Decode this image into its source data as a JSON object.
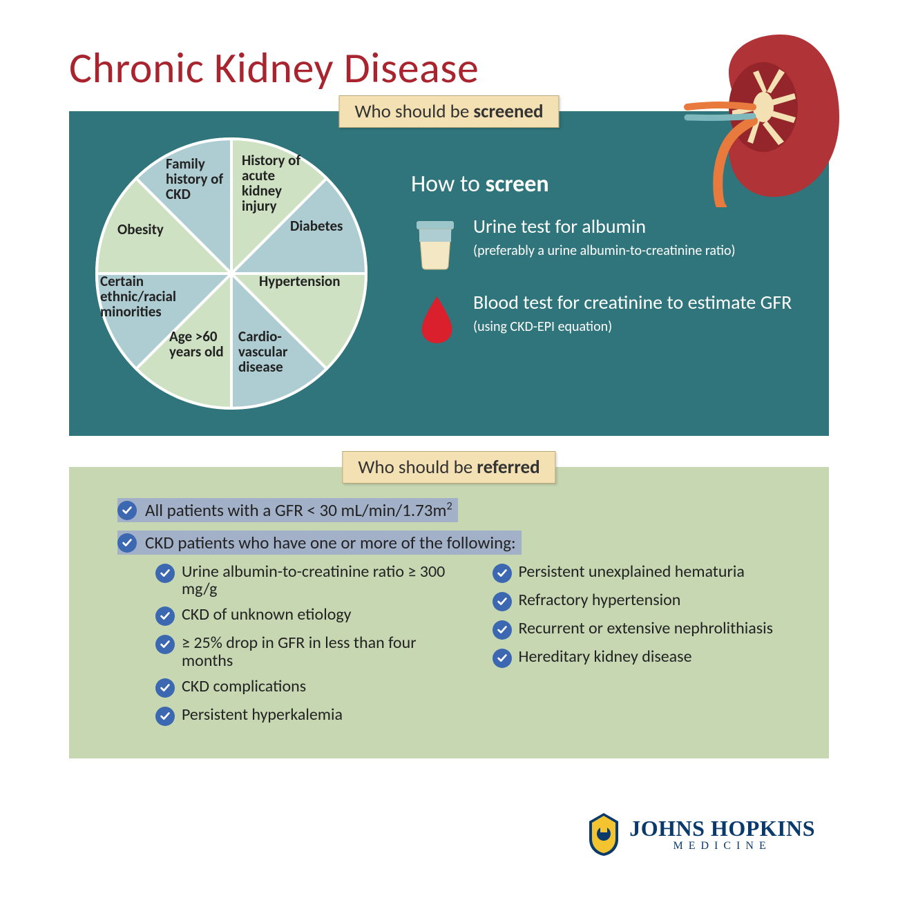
{
  "title": "Chronic Kidney Disease",
  "colors": {
    "title": "#a8242e",
    "panel_screen_bg": "#2f757b",
    "panel_refer_bg": "#c7d7b2",
    "banner_bg": "#f3e1b4",
    "check_bg": "#3b68b0",
    "logo_text": "#0a3a6b"
  },
  "screening": {
    "banner_prefix": "Who should be ",
    "banner_bold": "screened",
    "pie": {
      "type": "pie",
      "slices": 8,
      "slice_colors": [
        "#cee2c3",
        "#aecdd2",
        "#cee2c3",
        "#aecdd2",
        "#cee2c3",
        "#aecdd2",
        "#cee2c3",
        "#aecdd2"
      ],
      "stroke": "#ffffff",
      "labels": [
        "History of acute kidney injury",
        "Diabetes",
        "Hypertension",
        "Cardio-vascular disease",
        "Age >60 years old",
        "Certain ethnic/racial minorities",
        "Obesity",
        "Family history of CKD"
      ]
    },
    "how_title_prefix": "How to ",
    "how_title_bold": "screen",
    "tests": [
      {
        "icon": "urine-cup",
        "main": "Urine test for albumin",
        "sub": "(preferably a urine albumin-to-creatinine ratio)"
      },
      {
        "icon": "blood-drop",
        "main": "Blood test for creatinine to estimate GFR ",
        "sub": "(using CKD-EPI equation)"
      }
    ]
  },
  "referred": {
    "banner_prefix": "Who should be ",
    "banner_bold": "referred",
    "main_items": [
      "All patients with a GFR < 30 mL/min/1.73m²",
      "CKD patients who have one or more of the following:"
    ],
    "sub_col1": [
      "Urine albumin-to-creatinine ratio ≥ 300 mg/g",
      "CKD of unknown etiology",
      "≥ 25% drop in GFR in less than four months",
      "CKD complications",
      "Persistent hyperkalemia"
    ],
    "sub_col2": [
      "Persistent unexplained hematuria",
      "Refractory hypertension",
      "Recurrent or extensive nephrolithiasis",
      "Hereditary kidney disease"
    ]
  },
  "logo": {
    "line1": "JOHNS HOPKINS",
    "line2": "MEDICINE"
  }
}
